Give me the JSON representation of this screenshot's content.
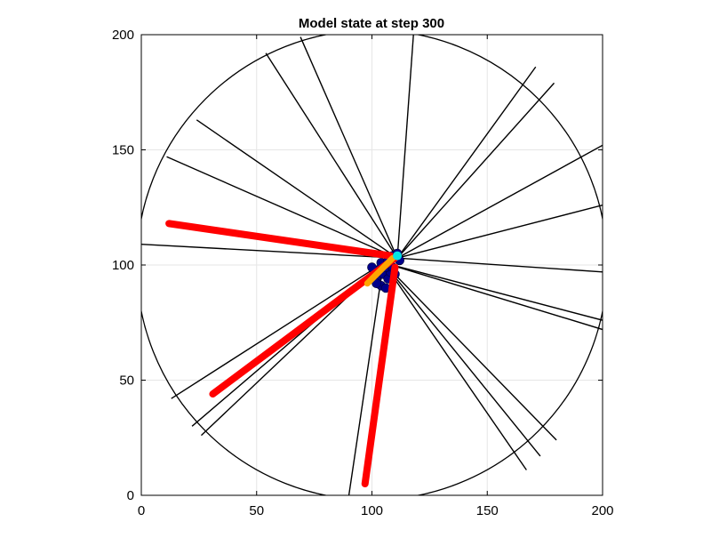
{
  "chart_data": {
    "type": "line",
    "title": "Model state at step 300",
    "xlabel": "",
    "ylabel": "",
    "xlim": [
      0,
      200
    ],
    "ylim": [
      0,
      200
    ],
    "xticks": [
      0,
      50,
      100,
      150,
      200
    ],
    "yticks": [
      0,
      50,
      100,
      150,
      200
    ],
    "grid": true,
    "boundary_circle": {
      "center": [
        100,
        100
      ],
      "radius": 102
    },
    "series": [
      {
        "kind": "black-segments",
        "color": "#000000",
        "segments": [
          [
            [
              0,
              109
            ],
            [
              111,
              103
            ]
          ],
          [
            [
              11,
              147
            ],
            [
              111,
              103
            ]
          ],
          [
            [
              24,
              163
            ],
            [
              111,
              103
            ]
          ],
          [
            [
              54,
              192
            ],
            [
              111,
              103
            ]
          ],
          [
            [
              69,
              199
            ],
            [
              111,
              103
            ]
          ],
          [
            [
              118,
              200
            ],
            [
              111,
              103
            ]
          ],
          [
            [
              171,
              186
            ],
            [
              111,
              103
            ]
          ],
          [
            [
              179,
              179
            ],
            [
              111,
              103
            ]
          ],
          [
            [
              200,
              152
            ],
            [
              111,
              103
            ]
          ],
          [
            [
              200,
              126
            ],
            [
              111,
              103
            ]
          ],
          [
            [
              200,
              97
            ],
            [
              111,
              103
            ]
          ],
          [
            [
              200,
              76
            ],
            [
              105,
              101
            ]
          ],
          [
            [
              200,
              72
            ],
            [
              105,
              101
            ]
          ],
          [
            [
              180,
              24
            ],
            [
              105,
              101
            ]
          ],
          [
            [
              173,
              17
            ],
            [
              105,
              101
            ]
          ],
          [
            [
              167,
              11
            ],
            [
              105,
              101
            ]
          ],
          [
            [
              90,
              0
            ],
            [
              105,
              101
            ]
          ],
          [
            [
              13,
              42
            ],
            [
              105,
              101
            ]
          ],
          [
            [
              22,
              30
            ],
            [
              105,
              101
            ]
          ],
          [
            [
              26,
              26
            ],
            [
              105,
              101
            ]
          ]
        ]
      },
      {
        "kind": "red-paths",
        "color": "#ff0000",
        "paths": [
          [
            [
              12,
              118
            ],
            [
              108,
              104
            ]
          ],
          [
            [
              31,
              44
            ],
            [
              110,
              103
            ]
          ],
          [
            [
              97,
              5
            ],
            [
              110,
              99
            ]
          ]
        ]
      },
      {
        "kind": "orange-arrow",
        "color": "#ffa500",
        "points": [
          [
            98,
            92
          ],
          [
            109,
            103
          ]
        ]
      },
      {
        "kind": "blue-points",
        "color": "#00008b",
        "points": [
          [
            104,
            91
          ],
          [
            106,
            90
          ],
          [
            102,
            94
          ],
          [
            105,
            96
          ],
          [
            107,
            94
          ],
          [
            103,
            98
          ],
          [
            101,
            96
          ],
          [
            108,
            97
          ],
          [
            106,
            99
          ],
          [
            104,
            101
          ],
          [
            109,
            99
          ],
          [
            110,
            96
          ],
          [
            107,
            102
          ],
          [
            109,
            104
          ],
          [
            111,
            105
          ],
          [
            112,
            102
          ],
          [
            100,
            99
          ],
          [
            102,
            92
          ]
        ]
      },
      {
        "kind": "cyan-point",
        "color": "#00e5e5",
        "points": [
          [
            111,
            104
          ]
        ]
      }
    ]
  }
}
